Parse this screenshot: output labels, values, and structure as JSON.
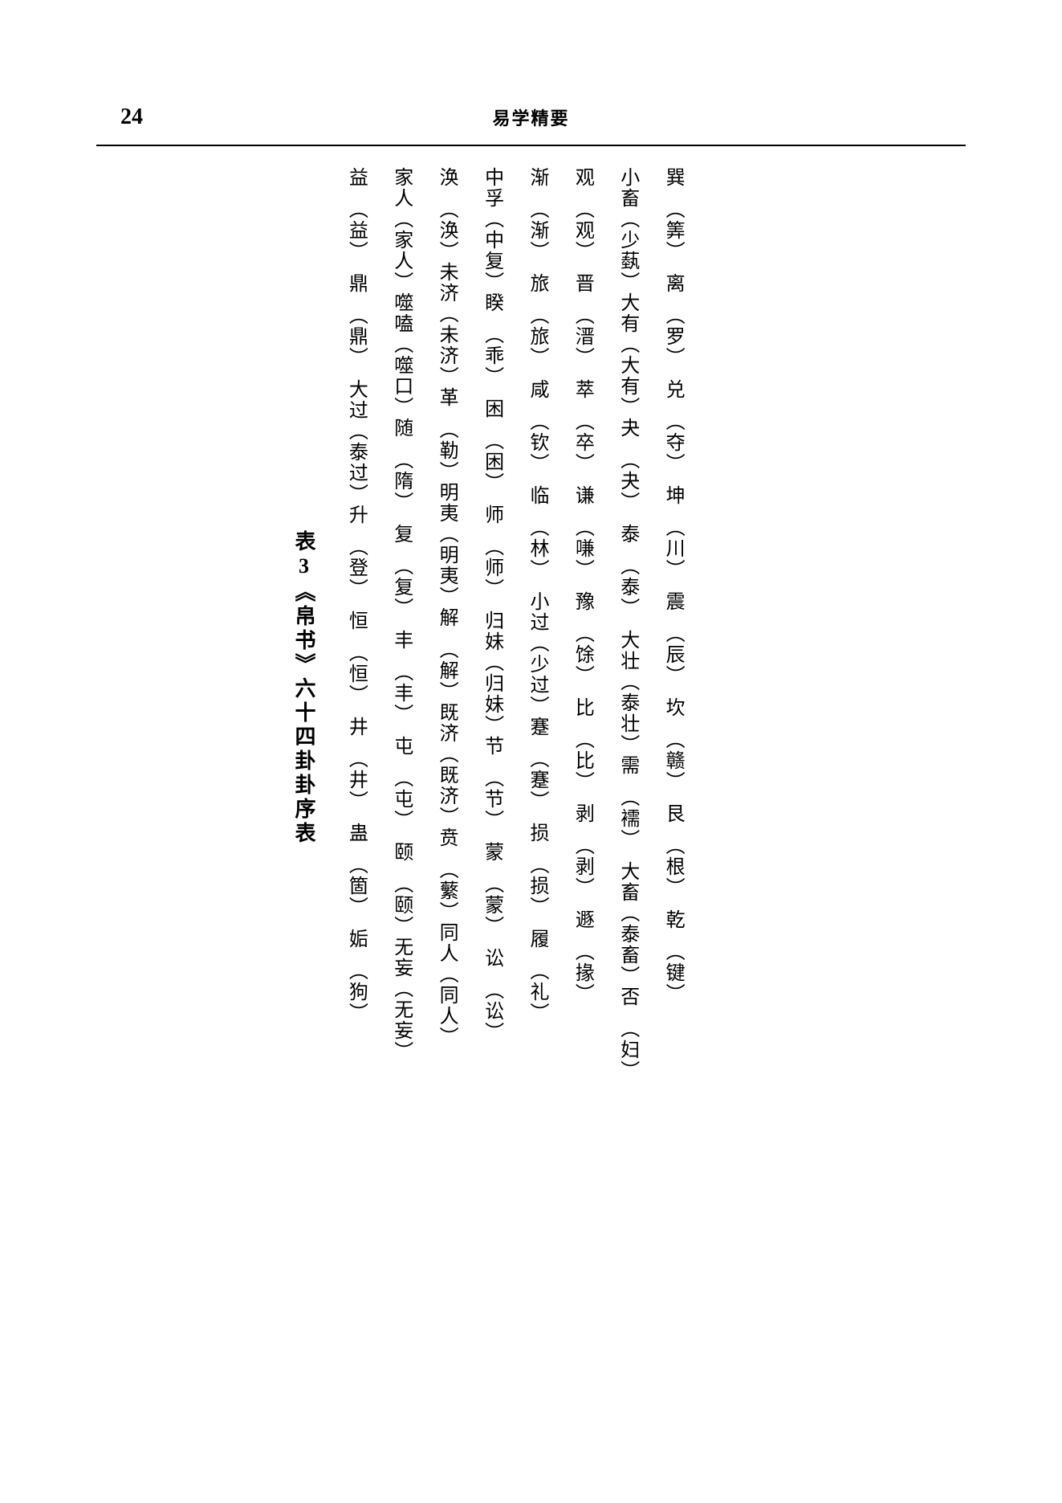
{
  "page_number": "24",
  "running_header": "易学精要",
  "table_title": "表3《帛书》六十四卦卦序表",
  "colors": {
    "text": "#000000",
    "background": "#ffffff"
  },
  "typography": {
    "body_font": "SimSun / 宋体",
    "page_number_fontsize": 28,
    "header_fontsize": 22,
    "title_fontsize": 26,
    "cell_fontsize": 24
  },
  "layout": {
    "orientation": "vertical-rl",
    "rows": 8,
    "cols_per_row": 8
  },
  "rows": [
    "巽　（筭）　离　（罗）　兑　（夺）　坤　（川）　震　（辰）　坎　（赣）　艮　（根）　乾　（键）",
    "小畜（少蓺）大有（大有）夬　（夬）　泰　（泰）　大壮（泰壮）需　（襦）　大畜（泰畜）否　（妇）",
    "观　（观）　晋　（溍）　萃　（卒）　谦　（嗛）　豫　（馀）　比　（比）　剥　（剥）　遯　（掾）",
    "渐　（渐）　旅　（旅）　咸　（钦）　临　（林）　小过（少过）蹇　（蹇）　损　（损）　履　（礼）",
    "中孚（中复）睽　（乖）　困　（困）　师　（师）　归妹（归妹）节　（节）　蒙　（蒙）　讼　（讼）",
    "涣　（涣）未济（未济）革　（勒）明夷（明夷）解　（解）既济（既济）贲　（蘩）同人（同人）",
    "家人（家人）噬嗑（噬口）随　（隋）　复　（复）　丰　（丰）　屯　（屯）　颐　（颐）无妄（无妄）",
    "益　（益）　鼎　（鼎）　大过（泰过）升　（登）　恒　（恒）　井　（井）　蛊　（箇）　姤　（狗）"
  ]
}
